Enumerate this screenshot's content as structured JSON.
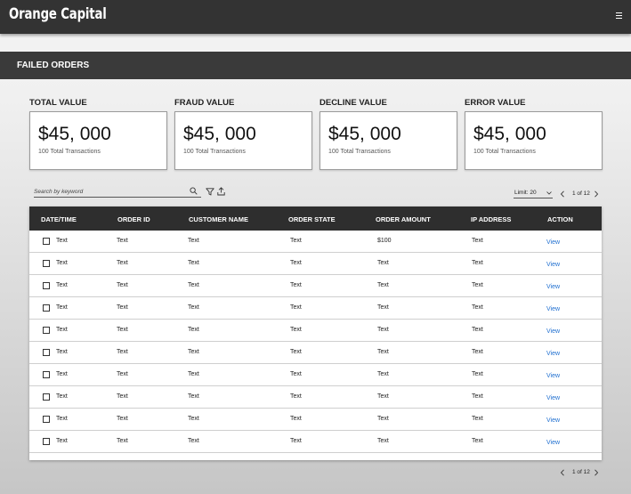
{
  "app": {
    "brand": "Orange Capital",
    "menu_icon": "hamburger-icon"
  },
  "section": {
    "title": "FAILED ORDERS"
  },
  "cards": [
    {
      "label": "TOTAL VALUE",
      "value": "$45, 000",
      "sub": "100 Total Transactions"
    },
    {
      "label": "FRAUD VALUE",
      "value": "$45, 000",
      "sub": "100 Total Transactions"
    },
    {
      "label": "DECLINE VALUE",
      "value": "$45, 000",
      "sub": "100 Total Transactions"
    },
    {
      "label": "ERROR VALUE",
      "value": "$45, 000",
      "sub": "100 Total Transactions"
    }
  ],
  "toolbar": {
    "search_placeholder": "Search by keyword",
    "search_icon": "search-icon",
    "filter_icon": "filter-icon",
    "export_icon": "upload-icon",
    "limit_label": "Limit: 20",
    "pagination_top": "1 of 12",
    "pagination_bottom": "1 of 12"
  },
  "table": {
    "columns": [
      "DATE/TIME",
      "ORDER ID",
      "CUSTOMER NAME",
      "ORDER STATE",
      "ORDER AMOUNT",
      "IP ADDRESS",
      "ACTION"
    ],
    "rows": [
      [
        "Text",
        "Text",
        "Text",
        "Text",
        "$100",
        "Text",
        "View"
      ],
      [
        "Text",
        "Text",
        "Text",
        "Text",
        "Text",
        "Text",
        "View"
      ],
      [
        "Text",
        "Text",
        "Text",
        "Text",
        "Text",
        "Text",
        "View"
      ],
      [
        "Text",
        "Text",
        "Text",
        "Text",
        "Text",
        "Text",
        "View"
      ],
      [
        "Text",
        "Text",
        "Text",
        "Text",
        "Text",
        "Text",
        "View"
      ],
      [
        "Text",
        "Text",
        "Text",
        "Text",
        "Text",
        "Text",
        "View"
      ],
      [
        "Text",
        "Text",
        "Text",
        "Text",
        "Text",
        "Text",
        "View"
      ],
      [
        "Text",
        "Text",
        "Text",
        "Text",
        "Text",
        "Text",
        "View"
      ],
      [
        "Text",
        "Text",
        "Text",
        "Text",
        "Text",
        "Text",
        "View"
      ],
      [
        "Text",
        "Text",
        "Text",
        "Text",
        "Text",
        "Text",
        "View"
      ]
    ]
  },
  "colors": {
    "header_bg": "#333333",
    "section_bg": "#3a3a3a",
    "table_header_bg": "#2e2e2e",
    "link": "#1f6fd0"
  }
}
